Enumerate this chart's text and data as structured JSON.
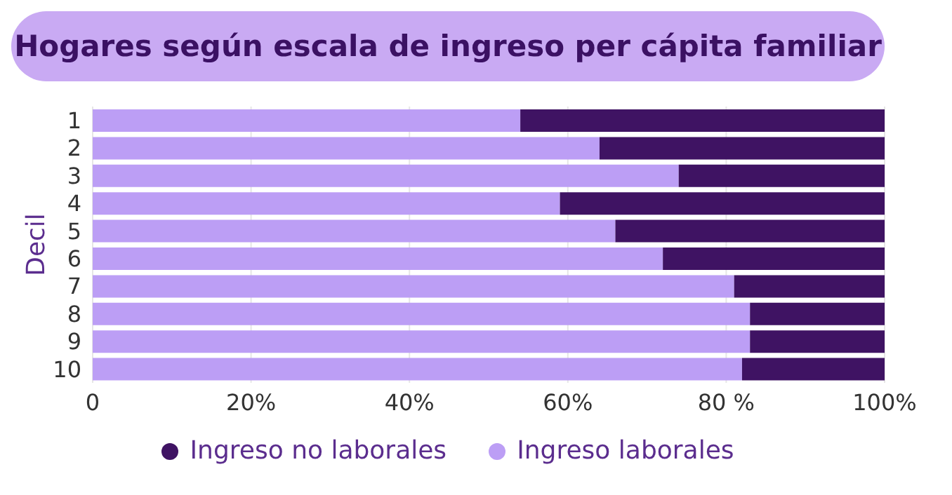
{
  "chart_data": {
    "type": "bar",
    "orientation": "horizontal",
    "stacked": true,
    "title": "Hogares según escala de ingreso per cápita familiar",
    "ylabel": "Decil",
    "categories": [
      "1",
      "2",
      "3",
      "4",
      "5",
      "6",
      "7",
      "8",
      "9",
      "10"
    ],
    "series": [
      {
        "name": "Ingreso laborales",
        "color": "#bc9ef5",
        "values": [
          54,
          64,
          74,
          59,
          66,
          72,
          81,
          83,
          83,
          82
        ]
      },
      {
        "name": "Ingreso no laborales",
        "color": "#3f1363",
        "values": [
          46,
          36,
          26,
          41,
          34,
          28,
          19,
          17,
          17,
          18
        ]
      }
    ],
    "xlim": [
      0,
      100
    ],
    "xticks": [
      {
        "value": 0,
        "label": "0"
      },
      {
        "value": 20,
        "label": "20%"
      },
      {
        "value": 40,
        "label": "40%"
      },
      {
        "value": 60,
        "label": "60%"
      },
      {
        "value": 80,
        "label": "80 %"
      },
      {
        "value": 100,
        "label": "100%"
      }
    ],
    "grid": "x",
    "legend": "bottom"
  }
}
